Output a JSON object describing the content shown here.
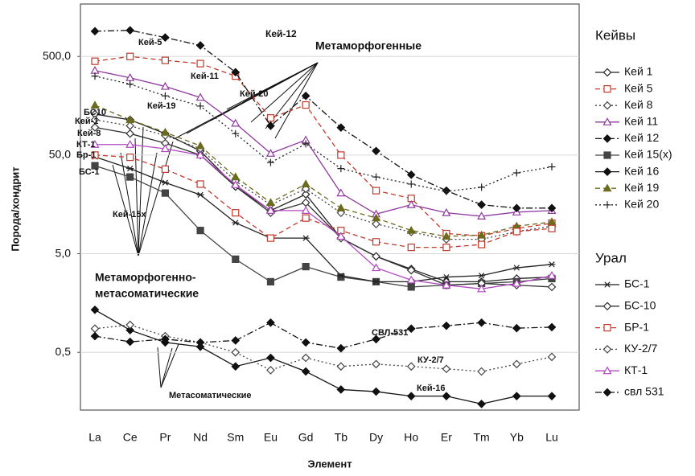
{
  "chart_data": {
    "type": "line",
    "x_label": "Элемент",
    "y_label": "Порода/хондрит",
    "log_y": true,
    "grid": true,
    "categories": [
      "La",
      "Ce",
      "Pr",
      "Nd",
      "Sm",
      "Eu",
      "Gd",
      "Tb",
      "Dy",
      "Ho",
      "Er",
      "Tm",
      "Yb",
      "Lu"
    ],
    "ylim": [
      0.13,
      1700
    ],
    "yticks": [
      {
        "value": 0.5,
        "label": "0,5"
      },
      {
        "value": 5,
        "label": "5,0"
      },
      {
        "value": 50,
        "label": "50,0"
      },
      {
        "value": 500,
        "label": "500,0"
      }
    ],
    "series_groups": [
      {
        "name": "Кейвы",
        "series": [
          {
            "name": "Кей 1",
            "color": "#222222",
            "marker": "diamond-open",
            "dash": "solid",
            "values": [
              130,
              114,
              82.5,
              55,
              24,
              13.7,
              20,
              7.2,
              4.7,
              3.5,
              2.6,
              2.6,
              2.8,
              2.9
            ]
          },
          {
            "name": "Кей 5",
            "color": "#c0392b",
            "marker": "square-open",
            "dash": "dashed",
            "values": [
              447,
              500,
              456,
              423,
              316,
              119,
              161,
              50,
              21.8,
              18.2,
              8,
              7.6,
              9,
              10.2
            ]
          },
          {
            "name": "Кей 8",
            "color": "#444444",
            "marker": "diamond-open",
            "dash": "dotted",
            "values": [
              114,
              99,
              79,
              58,
              27.3,
              15.7,
              22.7,
              13,
              10,
              8.3,
              7,
              7,
              8.4,
              9.5
            ]
          },
          {
            "name": "Кей 11",
            "color": "#8e3a9e",
            "marker": "triangle",
            "dash": "solid",
            "values": [
              360,
              304,
              248,
              192,
              105,
              52,
              71,
              20.6,
              12.6,
              15.7,
              13,
              12,
              13.2,
              13.7
            ]
          },
          {
            "name": "Кей 12",
            "color": "#111111",
            "marker": "diamond-filled",
            "dash": "dashdot",
            "values": [
              901,
              920,
              778,
              647,
              346,
              99,
              199,
              95,
              55,
              31.6,
              21.8,
              15.7,
              14.5,
              14.5
            ]
          },
          {
            "name": "Кей 15(x)",
            "color": "#444444",
            "marker": "square-filled",
            "dash": "solid",
            "values": [
              39,
              30,
              20.6,
              8.6,
              4.4,
              2.6,
              3.7,
              2.9,
              2.6,
              2.3,
              2.4,
              2.5,
              2.6,
              2.8
            ]
          },
          {
            "name": "Кей 16",
            "color": "#111111",
            "marker": "diamond-filled",
            "dash": "solid",
            "values": [
              1.35,
              0.84,
              0.63,
              0.57,
              0.36,
              0.44,
              0.32,
              0.21,
              0.2,
              0.18,
              0.18,
              0.15,
              0.18,
              0.18
            ]
          },
          {
            "name": "Кей 19",
            "color": "#6b6b1e",
            "marker": "triangle-filled",
            "dash": "dashed",
            "values": [
              160,
              114,
              85,
              62,
              30,
              16.5,
              25.4,
              14.5,
              11.5,
              8.6,
              7.5,
              7.7,
              9.5,
              10.5
            ]
          },
          {
            "name": "Кей 20",
            "color": "#222222",
            "marker": "plus",
            "dash": "dotted",
            "values": [
              316,
              262,
              199,
              157,
              82.5,
              42,
              65,
              36.5,
              30,
              25.4,
              21.4,
              23.6,
              33,
              38
            ]
          }
        ]
      },
      {
        "name": "Урал",
        "series": [
          {
            "name": "БС-1",
            "color": "#222222",
            "marker": "asterisk",
            "dash": "solid",
            "values": [
              48,
              36.5,
              26.3,
              19.8,
              10.3,
              7.2,
              7.2,
              3,
              2.6,
              2.6,
              2.9,
              3,
              3.6,
              3.9
            ]
          },
          {
            "name": "БС-10",
            "color": "#333333",
            "marker": "diamond-open",
            "dash": "solid",
            "values": [
              95.5,
              82.5,
              66,
              50,
              24,
              13,
              16.5,
              7.2,
              4.7,
              3.4,
              2.4,
              2.5,
              2.4,
              2.3
            ]
          },
          {
            "name": "БР-1",
            "color": "#c0392b",
            "marker": "square-open",
            "dash": "dashed",
            "values": [
              50,
              47.5,
              36,
              25.4,
              13,
              7.2,
              11.5,
              8.6,
              6.6,
              5.8,
              5.8,
              6.2,
              8.4,
              9
            ]
          },
          {
            "name": "КУ-2/7",
            "color": "#444444",
            "marker": "diamond-open",
            "dash": "dotted",
            "values": [
              0.87,
              0.95,
              0.73,
              0.63,
              0.5,
              0.33,
              0.44,
              0.36,
              0.38,
              0.36,
              0.34,
              0.32,
              0.38,
              0.45
            ]
          },
          {
            "name": "КТ-1",
            "color": "#b048c0",
            "marker": "triangle",
            "dash": "solid",
            "values": [
              64,
              64,
              58,
              50,
              25,
              13.7,
              13.7,
              7.5,
              3.6,
              2.7,
              2.4,
              2.2,
              2.5,
              3
            ]
          },
          {
            "name": "свл 531",
            "color": "#111111",
            "marker": "diamond-filled",
            "dash": "dashdot",
            "values": [
              0.73,
              0.64,
              0.68,
              0.63,
              0.66,
              1,
              0.63,
              0.55,
              0.68,
              0.87,
              0.93,
              1,
              0.88,
              0.9
            ]
          }
        ]
      }
    ],
    "annotations": [
      "Метаморфогенные",
      "Метаморфогенно-",
      "метасоматические",
      "Метасоматические",
      "Кей-12",
      "Кей-5",
      "Кей-11",
      "Кей-20",
      "БС10",
      "Кей-19",
      "Кей-1",
      "Кей-8",
      "КТ-1",
      "Бр-1",
      "БС-1",
      "Кей-15х",
      "СВЛ-531",
      "КУ-2/7",
      "Кей-16"
    ]
  }
}
